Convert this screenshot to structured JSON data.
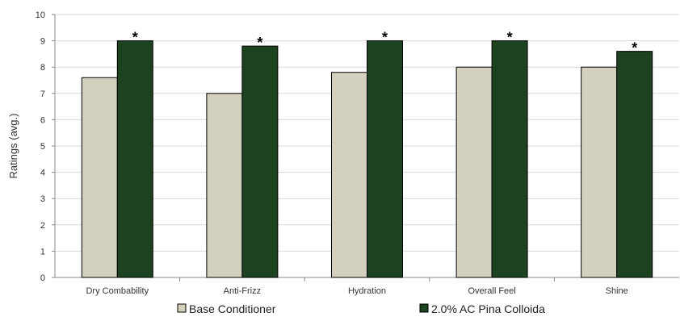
{
  "chart_data": {
    "type": "bar",
    "title": "",
    "xlabel": "",
    "ylabel": "Ratings (avg.)",
    "ylim": [
      0,
      10
    ],
    "yticks": [
      0,
      1,
      2,
      3,
      4,
      5,
      6,
      7,
      8,
      9,
      10
    ],
    "grid": true,
    "legend_position": "bottom",
    "categories": [
      "Dry Combability",
      "Anti-Frizz",
      "Hydration",
      "Overall Feel",
      "Shine"
    ],
    "series": [
      {
        "name": "Base Conditioner",
        "color": "#d3d1bd",
        "values": [
          7.6,
          7.0,
          7.8,
          8.0,
          8.0
        ]
      },
      {
        "name": "2.0% AC Pina Colloida",
        "color": "#1d4220",
        "values": [
          9.0,
          8.8,
          9.0,
          9.0,
          8.6
        ]
      }
    ],
    "annotations": [
      {
        "category": "Dry Combability",
        "series": "2.0% AC Pina Colloida",
        "text": "*"
      },
      {
        "category": "Anti-Frizz",
        "series": "2.0% AC Pina Colloida",
        "text": "*"
      },
      {
        "category": "Hydration",
        "series": "2.0% AC Pina Colloida",
        "text": "*"
      },
      {
        "category": "Overall Feel",
        "series": "2.0% AC Pina Colloida",
        "text": "*"
      },
      {
        "category": "Shine",
        "series": "2.0% AC Pina Colloida",
        "text": "*"
      }
    ]
  }
}
